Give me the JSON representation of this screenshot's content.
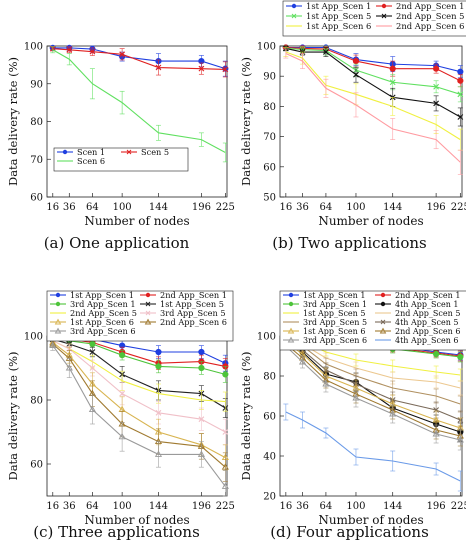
{
  "colors": {
    "1st_scen1": "#1f3fe0",
    "2nd_scen1": "#e02020",
    "3rd_scen1": "#4dc43a",
    "4th_scen1": "#111111",
    "1st_scen5": "#60e060",
    "2nd_scen5": "#f0f040",
    "3rd_scen5": "#ecc890",
    "4th_scen5": "#b09060",
    "1st_scen6": "#d8b450",
    "2nd_scen6": "#a07a30",
    "3rd_scen6": "#9a9a9a",
    "4th_scen6": "#6a9ae8",
    "scen5_b": "#e02020",
    "scen6_b": "#ff9aa0",
    "scen5_c": "#222222",
    "scen6_c": "#f0c0c8"
  },
  "captions": [
    "(a) One application",
    "(b) Two applications",
    "(c) Three applications",
    "(d) Four applications"
  ],
  "chart_data": [
    {
      "type": "line",
      "xlabel": "Number of nodes",
      "ylabel": "Data delivery rate (%)",
      "x": [
        16,
        36,
        64,
        100,
        144,
        196,
        225
      ],
      "xlim": [
        9,
        227
      ],
      "ylim": [
        60,
        100
      ],
      "yticks": [
        60,
        70,
        80,
        90,
        100
      ],
      "legend_position": "bottom-left",
      "legend_cols": 2,
      "grid": false,
      "series": [
        {
          "name": "Scen 1",
          "color": "#1f3fe0",
          "marker": "circle",
          "values": [
            99.5,
            99.5,
            99.2,
            97.2,
            96.0,
            96.0,
            94.0
          ],
          "err": [
            0.6,
            0.8,
            1.0,
            1.2,
            2.0,
            1.5,
            2.0
          ]
        },
        {
          "name": "Scen 5",
          "color": "#e02020",
          "marker": "x",
          "values": [
            99.3,
            99.0,
            98.5,
            97.8,
            94.3,
            94.0,
            93.8
          ],
          "err": [
            0.6,
            0.8,
            1.0,
            1.5,
            2.0,
            1.5,
            2.0
          ]
        },
        {
          "name": "Scen 6",
          "color": "#60e060",
          "marker": "none",
          "values": [
            99.0,
            96.5,
            90.0,
            85.0,
            77.0,
            75.2,
            71.8
          ],
          "err": [
            0.8,
            1.5,
            4.0,
            3.0,
            2.0,
            1.8,
            2.5
          ]
        }
      ]
    },
    {
      "type": "line",
      "xlabel": "Number of nodes",
      "ylabel": "Data delivery rate (%)",
      "x": [
        16,
        36,
        64,
        100,
        144,
        196,
        225
      ],
      "xlim": [
        9,
        227
      ],
      "ylim": [
        50,
        100
      ],
      "yticks": [
        50,
        60,
        70,
        80,
        90,
        100
      ],
      "legend_position": "top",
      "legend_cols": 2,
      "grid": false,
      "series": [
        {
          "name": "1st App_Scen 1",
          "color": "#1f3fe0",
          "marker": "circle",
          "values": [
            99.5,
            99.5,
            99.5,
            95.5,
            94.0,
            93.5,
            91.5
          ],
          "err": [
            0.6,
            0.8,
            1.0,
            2.0,
            2.5,
            1.5,
            2.0
          ]
        },
        {
          "name": "2nd App_Scen 1",
          "color": "#e02020",
          "marker": "circle",
          "values": [
            99.5,
            99.2,
            99.0,
            95.0,
            92.5,
            92.5,
            88.5
          ],
          "err": [
            0.6,
            0.8,
            1.0,
            2.0,
            2.5,
            1.5,
            2.0
          ]
        },
        {
          "name": "1st App_Scen 5",
          "color": "#60e060",
          "marker": "x",
          "values": [
            99.3,
            98.8,
            98.5,
            92.0,
            88.0,
            86.5,
            84.0
          ],
          "err": [
            0.8,
            1.0,
            1.5,
            2.0,
            2.5,
            2.0,
            2.5
          ]
        },
        {
          "name": "2nd App_Scen 5",
          "color": "#111111",
          "marker": "x",
          "values": [
            99.2,
            98.0,
            98.0,
            90.5,
            83.0,
            81.0,
            76.5
          ],
          "err": [
            0.8,
            1.0,
            1.5,
            2.5,
            3.0,
            2.5,
            3.0
          ]
        },
        {
          "name": "1st App_Scen 6",
          "color": "#f0f040",
          "marker": "none",
          "values": [
            98.0,
            96.0,
            87.0,
            84.0,
            80.0,
            74.0,
            69.0
          ],
          "err": [
            1.5,
            2.0,
            3.0,
            3.5,
            3.0,
            3.0,
            3.5
          ]
        },
        {
          "name": "2nd App_Scen 6",
          "color": "#ff9aa0",
          "marker": "none",
          "values": [
            97.5,
            95.0,
            86.0,
            80.5,
            72.5,
            69.0,
            61.5
          ],
          "err": [
            1.5,
            2.5,
            3.0,
            4.0,
            3.5,
            3.0,
            4.0
          ]
        }
      ]
    },
    {
      "type": "line",
      "xlabel": "Number of nodes",
      "ylabel": "Data delivery rate (%)",
      "x": [
        16,
        36,
        64,
        100,
        144,
        196,
        225
      ],
      "xlim": [
        9,
        227
      ],
      "ylim": [
        50,
        100
      ],
      "yticks": [
        60,
        80,
        100
      ],
      "legend_position": "top",
      "legend_cols": 2,
      "grid": false,
      "series": [
        {
          "name": "1st App_Scen 1",
          "color": "#1f3fe0",
          "marker": "circle",
          "values": [
            99.5,
            99.3,
            99.0,
            97.0,
            95.0,
            95.0,
            91.5
          ],
          "err": [
            0.6,
            0.8,
            1.0,
            1.5,
            2.0,
            2.0,
            2.5
          ]
        },
        {
          "name": "2nd App_Scen 1",
          "color": "#e02020",
          "marker": "circle",
          "values": [
            99.3,
            99.0,
            98.0,
            95.0,
            91.5,
            92.0,
            90.5
          ],
          "err": [
            0.6,
            0.8,
            1.0,
            1.5,
            2.0,
            2.0,
            2.5
          ]
        },
        {
          "name": "3rd App_Scen 1",
          "color": "#4dc43a",
          "marker": "circle",
          "values": [
            99.0,
            98.5,
            97.5,
            94.0,
            90.5,
            90.0,
            88.0
          ],
          "err": [
            0.6,
            0.8,
            1.0,
            1.5,
            2.0,
            2.0,
            2.5
          ]
        },
        {
          "name": "1st App_Scen 5",
          "color": "#222222",
          "marker": "x",
          "values": [
            99.0,
            97.5,
            95.0,
            88.0,
            83.0,
            82.0,
            77.5
          ],
          "err": [
            0.8,
            1.0,
            1.5,
            2.5,
            3.0,
            2.5,
            3.0
          ]
        },
        {
          "name": "2nd App_Scen 5",
          "color": "#f0f040",
          "marker": "none",
          "values": [
            98.5,
            96.0,
            92.0,
            86.0,
            82.0,
            80.0,
            79.5
          ],
          "err": [
            1.0,
            1.5,
            2.0,
            3.0,
            3.0,
            3.0,
            3.0
          ]
        },
        {
          "name": "3rd App_Scen 5",
          "color": "#f0c0c8",
          "marker": "x",
          "values": [
            98.5,
            96.0,
            90.0,
            82.0,
            76.0,
            74.0,
            70.0
          ],
          "err": [
            1.0,
            1.5,
            2.5,
            3.5,
            3.5,
            3.5,
            4.0
          ]
        },
        {
          "name": "1st App_Scen 6",
          "color": "#d8b450",
          "marker": "triangle",
          "values": [
            98.0,
            94.0,
            85.0,
            77.0,
            70.0,
            66.0,
            62.0
          ],
          "err": [
            1.0,
            2.5,
            3.5,
            4.0,
            4.0,
            3.5,
            4.0
          ]
        },
        {
          "name": "2nd App_Scen 6",
          "color": "#a07a30",
          "marker": "triangle",
          "values": [
            97.5,
            93.0,
            82.0,
            72.5,
            67.0,
            65.5,
            59.0
          ],
          "err": [
            1.0,
            2.5,
            4.0,
            4.0,
            4.0,
            4.0,
            4.5
          ]
        },
        {
          "name": "3rd App_Scen 6",
          "color": "#9a9a9a",
          "marker": "triangle",
          "values": [
            97.0,
            90.0,
            77.0,
            68.5,
            63.0,
            63.0,
            53.0
          ],
          "err": [
            1.5,
            3.0,
            4.5,
            4.5,
            4.0,
            4.0,
            5.0
          ]
        }
      ]
    },
    {
      "type": "line",
      "xlabel": "Number of nodes",
      "ylabel": "Data delivery rate (%)",
      "x": [
        16,
        36,
        64,
        100,
        144,
        196,
        225
      ],
      "xlim": [
        9,
        227
      ],
      "ylim": [
        20,
        100
      ],
      "yticks": [
        20,
        40,
        60,
        80,
        100
      ],
      "legend_position": "top",
      "legend_cols": 2,
      "grid": false,
      "series": [
        {
          "name": "1st App_Scen 1",
          "color": "#1f3fe0",
          "marker": "circle",
          "values": [
            99.5,
            99.3,
            99.0,
            96.5,
            95.0,
            92.0,
            90.5
          ],
          "err": [
            0.6,
            0.8,
            1.0,
            1.5,
            2.0,
            2.0,
            2.5
          ]
        },
        {
          "name": "2nd App_Scen 1",
          "color": "#e02020",
          "marker": "circle",
          "values": [
            99.3,
            99.0,
            98.0,
            96.0,
            94.0,
            91.5,
            90.0
          ],
          "err": [
            0.6,
            0.8,
            1.0,
            1.5,
            2.0,
            2.0,
            2.5
          ]
        },
        {
          "name": "3rd App_Scen 1",
          "color": "#4dc43a",
          "marker": "circle",
          "values": [
            99.0,
            98.8,
            97.5,
            95.5,
            93.5,
            91.0,
            89.5
          ],
          "err": [
            0.6,
            0.8,
            1.0,
            1.5,
            2.0,
            2.0,
            2.5
          ]
        },
        {
          "name": "4th App_Scen 1",
          "color": "#111111",
          "marker": "circle",
          "values": [
            98.5,
            92.0,
            81.0,
            77.0,
            64.0,
            56.0,
            52.0
          ],
          "err": [
            1.0,
            2.5,
            3.5,
            4.5,
            4.0,
            4.5,
            4.5
          ]
        },
        {
          "name": "1st App_Scen 5",
          "color": "#f0f040",
          "marker": "none",
          "values": [
            99.0,
            97.5,
            92.0,
            88.0,
            85.0,
            82.0,
            80.5
          ],
          "err": [
            1.0,
            1.5,
            2.0,
            3.0,
            3.0,
            3.0,
            3.0
          ]
        },
        {
          "name": "2nd App_Scen 5",
          "color": "#ecc890",
          "marker": "none",
          "values": [
            98.5,
            96.0,
            89.0,
            84.0,
            79.0,
            77.0,
            74.0
          ],
          "err": [
            1.0,
            1.5,
            2.5,
            3.0,
            3.0,
            3.0,
            3.5
          ]
        },
        {
          "name": "3rd App_Scen 5",
          "color": "#b09060",
          "marker": "none",
          "values": [
            98.0,
            95.0,
            86.0,
            80.0,
            74.0,
            70.0,
            66.0
          ],
          "err": [
            1.0,
            2.0,
            3.0,
            3.5,
            3.5,
            3.5,
            4.0
          ]
        },
        {
          "name": "4th App_Scen 5",
          "color": "#7a6a5a",
          "marker": "x",
          "values": [
            97.5,
            93.0,
            83.0,
            76.0,
            68.0,
            63.0,
            58.0
          ],
          "err": [
            1.0,
            2.5,
            3.5,
            4.0,
            4.0,
            4.0,
            4.5
          ]
        },
        {
          "name": "1st App_Scen 6",
          "color": "#d8b450",
          "marker": "triangle",
          "values": [
            97.0,
            91.0,
            80.0,
            74.0,
            66.0,
            58.0,
            54.0
          ],
          "err": [
            1.5,
            2.5,
            4.0,
            4.0,
            4.5,
            4.5,
            5.0
          ]
        },
        {
          "name": "2nd App_Scen 6",
          "color": "#a07a30",
          "marker": "triangle",
          "values": [
            96.0,
            89.0,
            78.0,
            71.0,
            63.0,
            53.0,
            50.0
          ],
          "err": [
            1.5,
            3.0,
            4.0,
            4.5,
            4.5,
            4.5,
            5.0
          ]
        },
        {
          "name": "3rd App_Scen 6",
          "color": "#9a9a9a",
          "marker": "triangle",
          "values": [
            95.0,
            87.0,
            76.0,
            69.0,
            61.0,
            51.0,
            48.0
          ],
          "err": [
            1.5,
            3.0,
            4.0,
            4.5,
            4.5,
            4.5,
            5.0
          ]
        },
        {
          "name": "4th App_Scen 6",
          "color": "#6a9ae8",
          "marker": "none",
          "values": [
            62.0,
            58.0,
            51.5,
            39.5,
            37.5,
            33.5,
            27.5
          ],
          "err": [
            4.0,
            4.0,
            2.5,
            4.0,
            5.0,
            3.0,
            5.0
          ]
        }
      ]
    }
  ]
}
